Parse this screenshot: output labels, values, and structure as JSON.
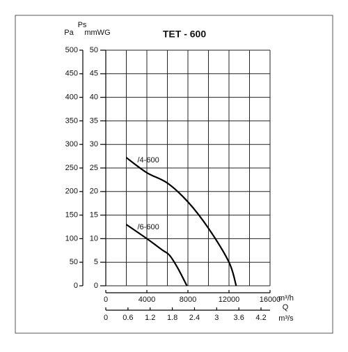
{
  "chart_data": {
    "type": "line",
    "title": "TET - 600",
    "y_label": "Ps",
    "y_unit": "Pa",
    "y2_unit": "mmWG",
    "x_label": "Q",
    "x_unit": "m³/h",
    "x2_unit": "m³/s",
    "xlim": [
      0,
      16000
    ],
    "xticks": [
      0,
      4000,
      8000,
      12000,
      16000
    ],
    "x2lim": [
      0,
      4.444
    ],
    "x2ticks": [
      0,
      0.6,
      1.2,
      1.8,
      2.4,
      3,
      3.6,
      4.2
    ],
    "ylim": [
      0,
      500
    ],
    "yticks": [
      0,
      50,
      100,
      150,
      200,
      250,
      300,
      350,
      400,
      450,
      500
    ],
    "y2lim": [
      0,
      50
    ],
    "y2ticks": [
      0,
      5,
      10,
      15,
      20,
      25,
      30,
      35,
      40,
      45,
      50
    ],
    "grid": true,
    "series": [
      {
        "name": "/4-600",
        "color": "#000000",
        "x": [
          2000,
          4000,
          6000,
          8000,
          10000,
          12000,
          12700
        ],
        "values": [
          272,
          240,
          218,
          178,
          122,
          50,
          0
        ]
      },
      {
        "name": "/6-600",
        "color": "#000000",
        "x": [
          2000,
          4000,
          5500,
          6200,
          7000,
          7900
        ],
        "values": [
          130,
          100,
          76,
          65,
          38,
          0
        ]
      }
    ]
  }
}
